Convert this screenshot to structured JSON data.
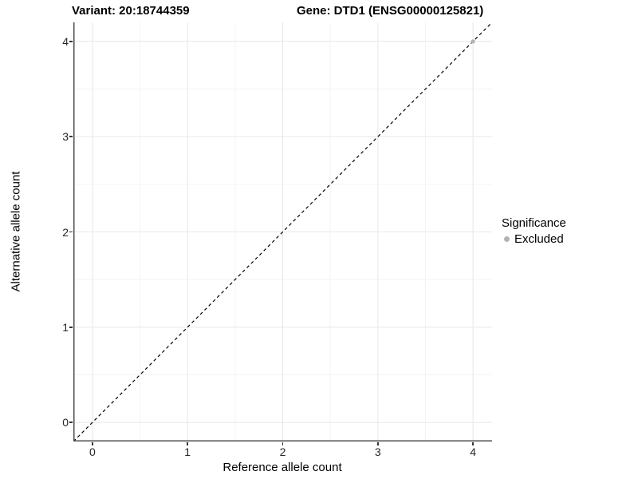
{
  "header": {
    "title_left": "Variant: 20:18744359",
    "title_right": "Gene: DTD1 (ENSG00000125821)"
  },
  "chart_data": {
    "type": "scatter",
    "xlabel": "Reference allele count",
    "ylabel": "Alternative allele count",
    "xlim": [
      -0.2,
      4.2
    ],
    "ylim": [
      -0.2,
      4.2
    ],
    "x_ticks": [
      0,
      1,
      2,
      3,
      4
    ],
    "y_ticks": [
      0,
      1,
      2,
      3,
      4
    ],
    "x_minor_ticks": [
      0.5,
      1.5,
      2.5,
      3.5
    ],
    "y_minor_ticks": [
      0.5,
      1.5,
      2.5,
      3.5
    ],
    "grid": true,
    "reference_line": {
      "type": "identity",
      "x1": -0.2,
      "y1": -0.2,
      "x2": 4.2,
      "y2": 4.2,
      "style": "dashed",
      "color": "#000000"
    },
    "series": [
      {
        "name": "Excluded",
        "color": "#b3b3b3",
        "points": [
          {
            "x": 4,
            "y": 4
          }
        ]
      }
    ],
    "legend": {
      "position": "right",
      "title": "Significance",
      "entries": [
        {
          "label": "Excluded",
          "color": "#b3b3b3"
        }
      ]
    },
    "colors": {
      "grid_major": "#e8e8e8",
      "grid_minor": "#f4f4f4",
      "axis_line": "#4d4d4d",
      "tick_mark": "#333333",
      "tick_label": "#262626"
    }
  }
}
